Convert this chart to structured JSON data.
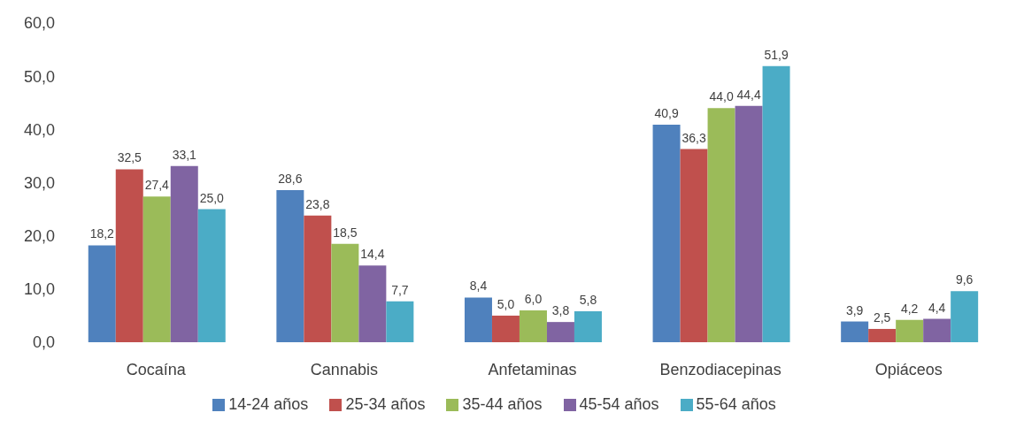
{
  "chart_data": {
    "type": "bar",
    "categories": [
      "Cocaína",
      "Cannabis",
      "Anfetaminas",
      "Benzodiacepinas",
      "Opiáceos"
    ],
    "series": [
      {
        "name": "14-24 años",
        "color": "#4f81bd",
        "values": [
          18.2,
          28.6,
          8.4,
          40.9,
          3.9
        ],
        "value_labels": [
          "18,2",
          "28,6",
          "8,4",
          "40,9",
          "3,9"
        ]
      },
      {
        "name": "25-34 años",
        "color": "#c0504d",
        "values": [
          32.5,
          23.8,
          5.0,
          36.3,
          2.5
        ],
        "value_labels": [
          "32,5",
          "23,8",
          "5,0",
          "36,3",
          "2,5"
        ]
      },
      {
        "name": "35-44 años",
        "color": "#9bbb59",
        "values": [
          27.4,
          18.5,
          6.0,
          44.0,
          4.2
        ],
        "value_labels": [
          "27,4",
          "18,5",
          "6,0",
          "44,0",
          "4,2"
        ]
      },
      {
        "name": "45-54 años",
        "color": "#8064a2",
        "values": [
          33.1,
          14.4,
          3.8,
          44.4,
          4.4
        ],
        "value_labels": [
          "33,1",
          "14,4",
          "3,8",
          "44,4",
          "4,4"
        ]
      },
      {
        "name": "55-64 años",
        "color": "#4bacc6",
        "values": [
          25.0,
          7.7,
          5.8,
          51.9,
          9.6
        ],
        "value_labels": [
          "25,0",
          "7,7",
          "5,8",
          "51,9",
          "9,6"
        ]
      }
    ],
    "ylim": [
      0,
      60
    ],
    "yticks": [
      {
        "value": 0,
        "label": "0,0"
      },
      {
        "value": 10,
        "label": "10,0"
      },
      {
        "value": 20,
        "label": "20,0"
      },
      {
        "value": 30,
        "label": "30,0"
      },
      {
        "value": 40,
        "label": "40,0"
      },
      {
        "value": 50,
        "label": "50,0"
      },
      {
        "value": 60,
        "label": "60,0"
      }
    ],
    "grid": false,
    "legend": "bottom"
  }
}
